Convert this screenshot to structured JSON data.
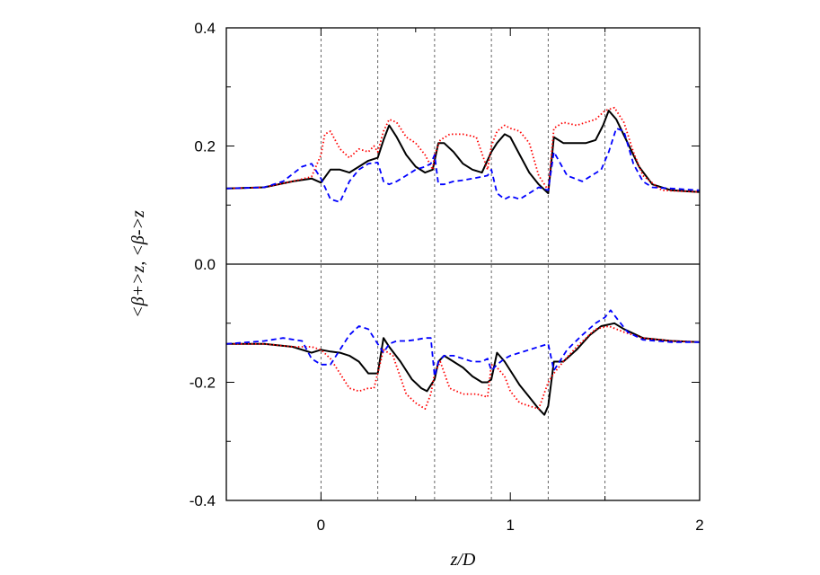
{
  "chart_data": {
    "type": "line",
    "xlabel": "z/D",
    "ylabel": "<β+>z, <β->z",
    "xlim": [
      -0.5,
      2
    ],
    "ylim": [
      -0.4,
      0.4
    ],
    "x_ticks": [
      0,
      1,
      2
    ],
    "x_tick_labels": [
      "0",
      "1",
      "2"
    ],
    "y_ticks": [
      -0.4,
      -0.2,
      0.0,
      0.2,
      0.4
    ],
    "y_tick_labels": [
      "-0.4",
      "-0.2",
      "0.0",
      "0.2",
      "0.4"
    ],
    "zero_line": 0,
    "vertical_dashed_lines_x": [
      0,
      0.3,
      0.6,
      0.9,
      1.2,
      1.5
    ],
    "grid": false,
    "legend": "none",
    "series": [
      {
        "color": "#000000",
        "style": "solid",
        "x": [
          -0.5,
          -0.3,
          -0.15,
          -0.05,
          0.0,
          0.05,
          0.1,
          0.15,
          0.2,
          0.25,
          0.3,
          0.33,
          0.36,
          0.4,
          0.45,
          0.5,
          0.55,
          0.59,
          0.6,
          0.62,
          0.65,
          0.7,
          0.75,
          0.8,
          0.85,
          0.9,
          0.93,
          0.97,
          1.0,
          1.05,
          1.1,
          1.15,
          1.2,
          1.23,
          1.28,
          1.33,
          1.4,
          1.45,
          1.49,
          1.52,
          1.56,
          1.62,
          1.68,
          1.75,
          1.85,
          2.0
        ],
        "y": [
          0.128,
          0.13,
          0.14,
          0.145,
          0.138,
          0.16,
          0.16,
          0.155,
          0.165,
          0.175,
          0.18,
          0.21,
          0.235,
          0.215,
          0.185,
          0.165,
          0.155,
          0.16,
          0.175,
          0.205,
          0.205,
          0.19,
          0.17,
          0.16,
          0.155,
          0.19,
          0.205,
          0.22,
          0.215,
          0.185,
          0.155,
          0.135,
          0.12,
          0.215,
          0.205,
          0.205,
          0.205,
          0.21,
          0.235,
          0.26,
          0.245,
          0.205,
          0.165,
          0.135,
          0.125,
          0.122
        ]
      },
      {
        "color": "#ff0000",
        "style": "dotted",
        "x": [
          -0.5,
          -0.3,
          -0.15,
          -0.05,
          0.0,
          0.02,
          0.05,
          0.1,
          0.15,
          0.2,
          0.25,
          0.28,
          0.3,
          0.33,
          0.36,
          0.4,
          0.45,
          0.5,
          0.55,
          0.59,
          0.6,
          0.63,
          0.68,
          0.75,
          0.82,
          0.88,
          0.9,
          0.93,
          0.97,
          1.0,
          1.05,
          1.1,
          1.15,
          1.2,
          1.23,
          1.28,
          1.35,
          1.45,
          1.5,
          1.55,
          1.6,
          1.65,
          1.7,
          1.8,
          2.0
        ],
        "y": [
          0.128,
          0.13,
          0.14,
          0.148,
          0.185,
          0.22,
          0.225,
          0.195,
          0.18,
          0.195,
          0.19,
          0.2,
          0.19,
          0.225,
          0.245,
          0.24,
          0.215,
          0.205,
          0.185,
          0.16,
          0.185,
          0.21,
          0.22,
          0.22,
          0.215,
          0.16,
          0.2,
          0.225,
          0.235,
          0.23,
          0.225,
          0.205,
          0.15,
          0.125,
          0.23,
          0.24,
          0.235,
          0.245,
          0.26,
          0.265,
          0.24,
          0.19,
          0.15,
          0.125,
          0.122
        ]
      },
      {
        "color": "#0000ff",
        "style": "dashed",
        "x": [
          -0.5,
          -0.3,
          -0.2,
          -0.1,
          -0.05,
          0.0,
          0.05,
          0.1,
          0.15,
          0.2,
          0.25,
          0.3,
          0.33,
          0.36,
          0.4,
          0.45,
          0.5,
          0.55,
          0.58,
          0.6,
          0.62,
          0.65,
          0.7,
          0.75,
          0.8,
          0.85,
          0.88,
          0.9,
          0.93,
          0.97,
          1.0,
          1.05,
          1.1,
          1.15,
          1.2,
          1.23,
          1.3,
          1.38,
          1.43,
          1.48,
          1.52,
          1.56,
          1.6,
          1.65,
          1.7,
          1.75,
          1.85,
          2.0
        ],
        "y": [
          0.128,
          0.13,
          0.14,
          0.165,
          0.17,
          0.145,
          0.11,
          0.105,
          0.14,
          0.16,
          0.17,
          0.172,
          0.14,
          0.135,
          0.14,
          0.15,
          0.16,
          0.165,
          0.17,
          0.185,
          0.135,
          0.135,
          0.14,
          0.142,
          0.145,
          0.148,
          0.15,
          0.16,
          0.12,
          0.11,
          0.115,
          0.11,
          0.12,
          0.13,
          0.125,
          0.19,
          0.15,
          0.14,
          0.15,
          0.16,
          0.19,
          0.23,
          0.225,
          0.17,
          0.14,
          0.13,
          0.128,
          0.125
        ]
      },
      {
        "color": "#000000",
        "style": "solid",
        "x": [
          -0.5,
          -0.3,
          -0.15,
          -0.05,
          0.0,
          0.05,
          0.1,
          0.15,
          0.2,
          0.25,
          0.3,
          0.33,
          0.36,
          0.42,
          0.48,
          0.53,
          0.56,
          0.6,
          0.62,
          0.65,
          0.7,
          0.75,
          0.8,
          0.85,
          0.88,
          0.9,
          0.93,
          0.97,
          1.0,
          1.05,
          1.1,
          1.15,
          1.18,
          1.2,
          1.23,
          1.28,
          1.35,
          1.42,
          1.48,
          1.55,
          1.6,
          1.7,
          1.85,
          2.0
        ],
        "y": [
          -0.135,
          -0.135,
          -0.14,
          -0.15,
          -0.145,
          -0.148,
          -0.15,
          -0.155,
          -0.165,
          -0.185,
          -0.185,
          -0.125,
          -0.14,
          -0.165,
          -0.195,
          -0.21,
          -0.215,
          -0.195,
          -0.165,
          -0.155,
          -0.165,
          -0.175,
          -0.19,
          -0.2,
          -0.2,
          -0.195,
          -0.15,
          -0.165,
          -0.18,
          -0.205,
          -0.225,
          -0.245,
          -0.255,
          -0.24,
          -0.165,
          -0.165,
          -0.145,
          -0.12,
          -0.105,
          -0.1,
          -0.11,
          -0.125,
          -0.13,
          -0.132
        ]
      },
      {
        "color": "#ff0000",
        "style": "dotted",
        "x": [
          -0.5,
          -0.3,
          -0.15,
          -0.05,
          0.0,
          0.05,
          0.1,
          0.15,
          0.2,
          0.25,
          0.28,
          0.3,
          0.33,
          0.38,
          0.45,
          0.5,
          0.55,
          0.58,
          0.6,
          0.63,
          0.68,
          0.75,
          0.82,
          0.88,
          0.9,
          0.93,
          0.97,
          1.0,
          1.05,
          1.1,
          1.15,
          1.2,
          1.23,
          1.28,
          1.35,
          1.45,
          1.52,
          1.6,
          1.7,
          1.85,
          2.0
        ],
        "y": [
          -0.135,
          -0.135,
          -0.14,
          -0.14,
          -0.145,
          -0.16,
          -0.185,
          -0.21,
          -0.215,
          -0.21,
          -0.21,
          -0.185,
          -0.145,
          -0.155,
          -0.22,
          -0.235,
          -0.245,
          -0.22,
          -0.185,
          -0.165,
          -0.21,
          -0.22,
          -0.22,
          -0.225,
          -0.17,
          -0.175,
          -0.19,
          -0.215,
          -0.235,
          -0.24,
          -0.245,
          -0.2,
          -0.185,
          -0.165,
          -0.14,
          -0.11,
          -0.105,
          -0.115,
          -0.125,
          -0.13,
          -0.132
        ]
      },
      {
        "color": "#0000ff",
        "style": "dashed",
        "x": [
          -0.5,
          -0.3,
          -0.2,
          -0.1,
          -0.05,
          0.0,
          0.05,
          0.1,
          0.15,
          0.2,
          0.25,
          0.3,
          0.33,
          0.36,
          0.4,
          0.45,
          0.5,
          0.55,
          0.58,
          0.6,
          0.62,
          0.65,
          0.7,
          0.75,
          0.8,
          0.85,
          0.88,
          0.9,
          0.93,
          0.97,
          1.0,
          1.05,
          1.1,
          1.15,
          1.2,
          1.23,
          1.3,
          1.38,
          1.45,
          1.5,
          1.53,
          1.57,
          1.62,
          1.7,
          1.85,
          2.0
        ],
        "y": [
          -0.135,
          -0.13,
          -0.125,
          -0.13,
          -0.16,
          -0.17,
          -0.17,
          -0.145,
          -0.12,
          -0.105,
          -0.11,
          -0.135,
          -0.15,
          -0.135,
          -0.13,
          -0.13,
          -0.128,
          -0.125,
          -0.125,
          -0.19,
          -0.165,
          -0.155,
          -0.155,
          -0.16,
          -0.165,
          -0.165,
          -0.16,
          -0.18,
          -0.17,
          -0.16,
          -0.155,
          -0.15,
          -0.145,
          -0.14,
          -0.135,
          -0.18,
          -0.145,
          -0.12,
          -0.1,
          -0.09,
          -0.078,
          -0.095,
          -0.115,
          -0.128,
          -0.132,
          -0.132
        ]
      }
    ]
  }
}
